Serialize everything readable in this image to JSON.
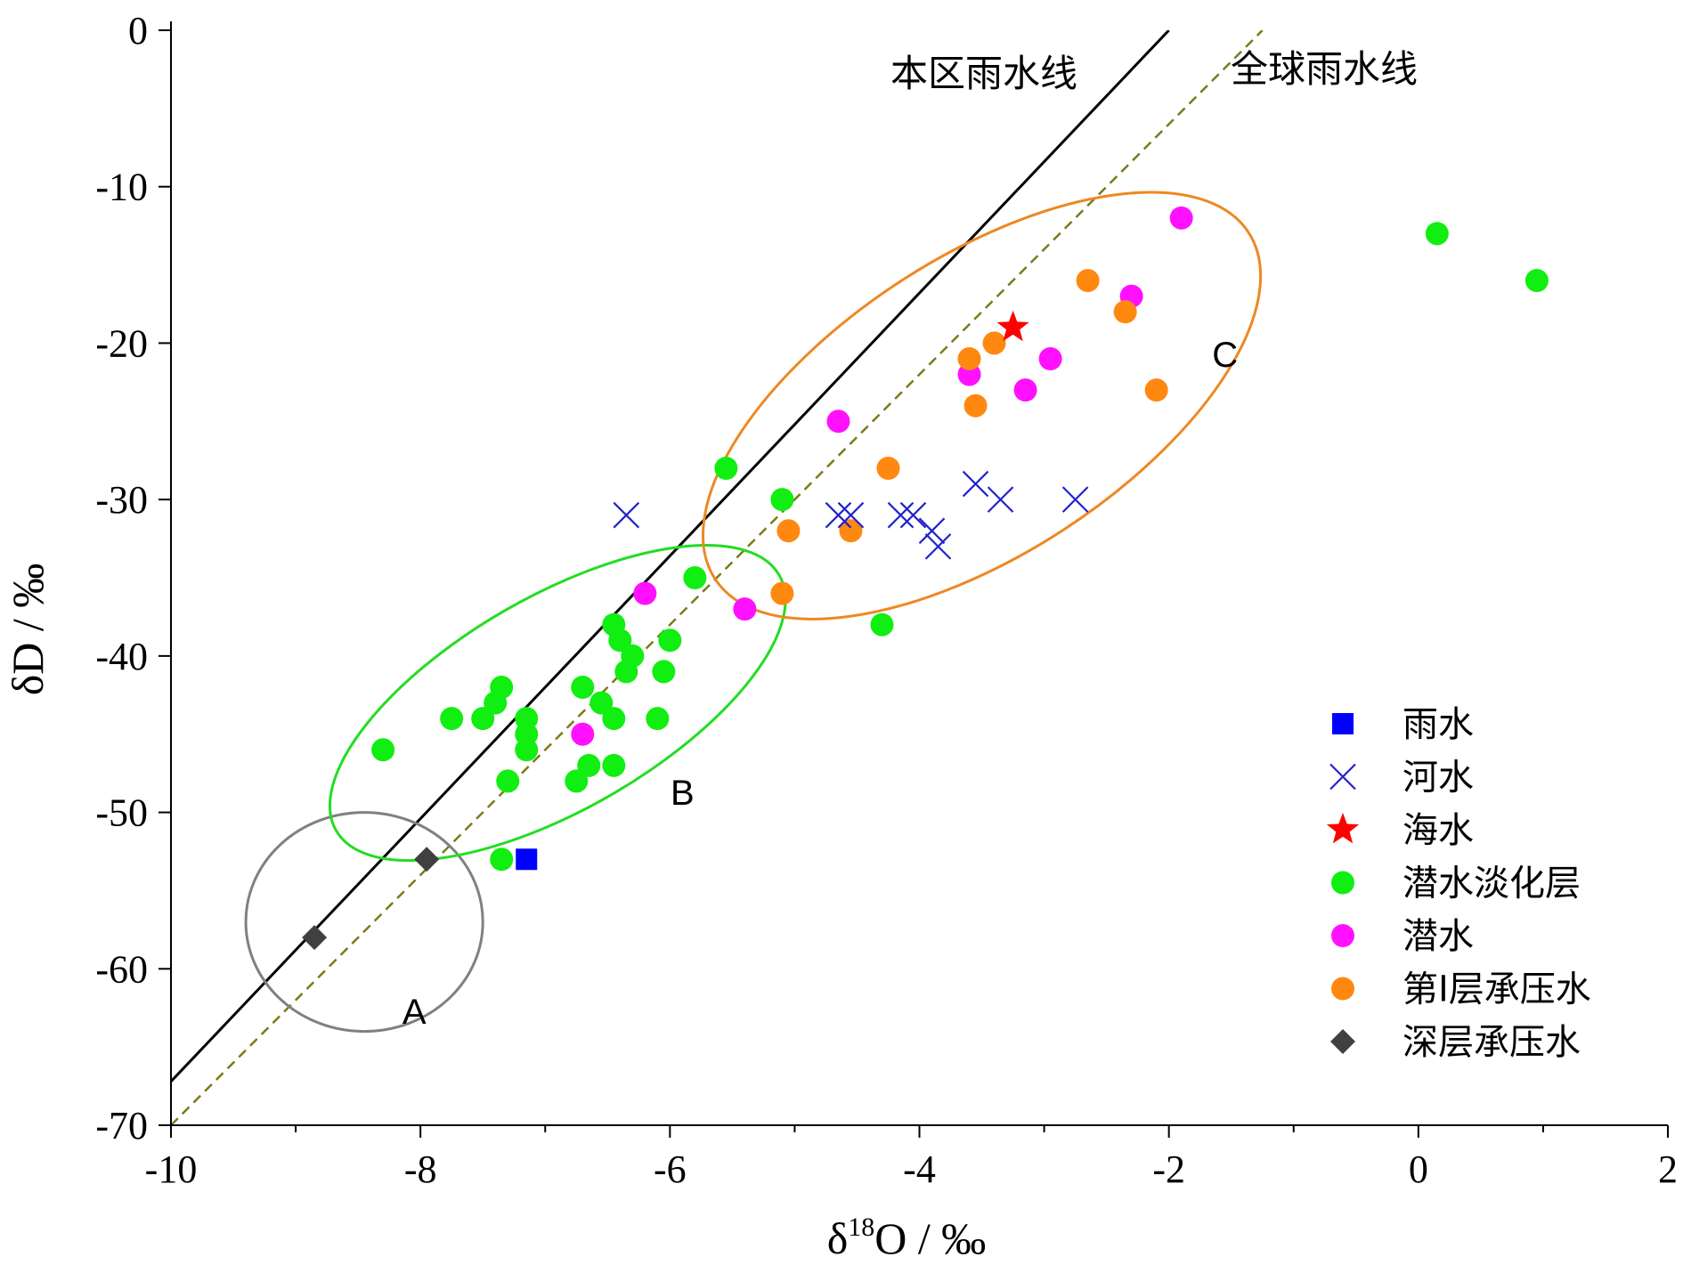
{
  "chart_data": {
    "type": "scatter",
    "xlabel": "δ18O / ‰",
    "xlabel_main": "δ",
    "xlabel_sup": "18",
    "xlabel_rest": "O / ‰",
    "ylabel": "δD / ‰",
    "xlim": [
      -10,
      2
    ],
    "ylim": [
      -70,
      0
    ],
    "x_ticks": [
      -10,
      -8,
      -6,
      -4,
      -2,
      0,
      2
    ],
    "y_ticks": [
      0,
      -10,
      -20,
      -30,
      -40,
      -50,
      -60,
      -70
    ],
    "x_tick_labels": [
      "-10",
      "-8",
      "-6",
      "-4",
      "-2",
      "0",
      "2"
    ],
    "y_tick_labels": [
      "0",
      "-10",
      "-20",
      "-30",
      "-40",
      "-50",
      "-60",
      "-70"
    ],
    "grid": false,
    "legend_position": "bottom-right",
    "lines": [
      {
        "label": "本区雨水线",
        "style": "solid",
        "color": "#000000",
        "points": [
          [
            -10,
            -67.2
          ],
          [
            -2.0,
            0
          ]
        ]
      },
      {
        "label": "全球雨水线",
        "style": "dashed",
        "color": "#7a7a1a",
        "points": [
          [
            -10,
            -70
          ],
          [
            -1.25,
            0
          ]
        ]
      }
    ],
    "ellipses": [
      {
        "label": "A",
        "color": "#808080",
        "cx": -8.45,
        "cy": -57,
        "rx": 0.95,
        "ry": 7,
        "angle": 0,
        "label_at": [
          -8.05,
          -63.5
        ]
      },
      {
        "label": "B",
        "color": "#22dd22",
        "cx": -6.9,
        "cy": -43,
        "rx": 2.05,
        "ry": 6.8,
        "angle": -30,
        "label_at": [
          -5.9,
          -49.5
        ]
      },
      {
        "label": "C",
        "color": "#ee8822",
        "cx": -3.5,
        "cy": -24,
        "rx": 2.55,
        "ry": 9.5,
        "angle": -33,
        "label_at": [
          -1.55,
          -21.5
        ]
      }
    ],
    "series": [
      {
        "name": "雨水",
        "marker": "square",
        "color": "#0000ff",
        "points": [
          [
            -7.15,
            -53
          ]
        ]
      },
      {
        "name": "河水",
        "marker": "x",
        "color": "#2222cc",
        "points": [
          [
            -6.35,
            -31
          ],
          [
            -4.65,
            -31
          ],
          [
            -4.55,
            -31
          ],
          [
            -4.15,
            -31
          ],
          [
            -4.05,
            -31
          ],
          [
            -3.9,
            -32
          ],
          [
            -3.85,
            -33
          ],
          [
            -3.55,
            -29
          ],
          [
            -3.35,
            -30
          ],
          [
            -2.75,
            -30
          ]
        ]
      },
      {
        "name": "海水",
        "marker": "star",
        "color": "#ff0000",
        "points": [
          [
            -3.25,
            -19
          ]
        ]
      },
      {
        "name": "潜水淡化层",
        "marker": "circle",
        "color": "#11ee11",
        "points": [
          [
            -8.3,
            -46
          ],
          [
            -7.75,
            -44
          ],
          [
            -7.5,
            -44
          ],
          [
            -7.4,
            -43
          ],
          [
            -7.35,
            -42
          ],
          [
            -7.3,
            -48
          ],
          [
            -7.15,
            -44
          ],
          [
            -7.15,
            -45
          ],
          [
            -7.15,
            -46
          ],
          [
            -7.35,
            -53
          ],
          [
            -6.75,
            -48
          ],
          [
            -6.7,
            -42
          ],
          [
            -6.65,
            -47
          ],
          [
            -6.55,
            -43
          ],
          [
            -6.45,
            -38
          ],
          [
            -6.45,
            -44
          ],
          [
            -6.45,
            -47
          ],
          [
            -6.4,
            -39
          ],
          [
            -6.35,
            -41
          ],
          [
            -6.3,
            -40
          ],
          [
            -6.1,
            -44
          ],
          [
            -6.05,
            -41
          ],
          [
            -6.0,
            -39
          ],
          [
            -5.8,
            -35
          ],
          [
            -5.55,
            -28
          ],
          [
            -5.1,
            -30
          ],
          [
            -4.3,
            -38
          ],
          [
            0.15,
            -13
          ],
          [
            0.95,
            -16
          ]
        ]
      },
      {
        "name": "潜水",
        "marker": "circle",
        "color": "#ff11ff",
        "points": [
          [
            -6.2,
            -36
          ],
          [
            -5.4,
            -37
          ],
          [
            -6.7,
            -45
          ],
          [
            -4.65,
            -25
          ],
          [
            -3.6,
            -22
          ],
          [
            -3.15,
            -23
          ],
          [
            -2.95,
            -21
          ],
          [
            -2.3,
            -17
          ],
          [
            -1.9,
            -12
          ]
        ]
      },
      {
        "name": "第I层承压水",
        "marker": "circle",
        "color": "#ff8811",
        "points": [
          [
            -5.05,
            -32
          ],
          [
            -5.1,
            -36
          ],
          [
            -4.55,
            -32
          ],
          [
            -4.25,
            -28
          ],
          [
            -3.6,
            -21
          ],
          [
            -3.55,
            -24
          ],
          [
            -3.4,
            -20
          ],
          [
            -2.65,
            -16
          ],
          [
            -2.35,
            -18
          ],
          [
            -2.1,
            -23
          ]
        ]
      },
      {
        "name": "深层承压水",
        "marker": "diamond",
        "color": "#404040",
        "points": [
          [
            -8.85,
            -58
          ],
          [
            -7.95,
            -53
          ]
        ]
      }
    ]
  }
}
